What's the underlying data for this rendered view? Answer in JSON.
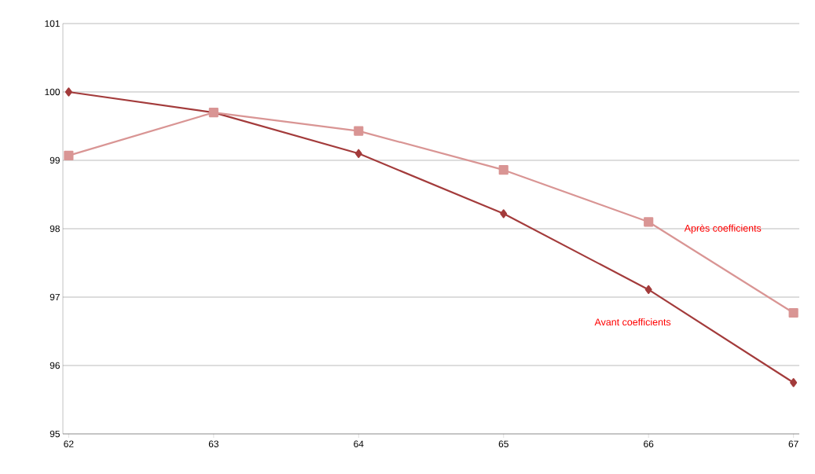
{
  "chart_data": {
    "type": "line",
    "x": [
      62,
      63,
      64,
      65,
      66,
      67
    ],
    "series": [
      {
        "name": "Avant coefficients",
        "color": "#a33b3b",
        "marker": "diamond",
        "values": [
          100.0,
          99.7,
          99.1,
          98.22,
          97.11,
          95.75
        ]
      },
      {
        "name": "Après coefficients",
        "color": "#d99594",
        "marker": "square",
        "values": [
          99.07,
          99.7,
          99.43,
          98.86,
          98.1,
          96.77
        ]
      }
    ],
    "xlim": [
      61.96,
      67.04
    ],
    "xticks": [
      62,
      63,
      64,
      65,
      66,
      67
    ],
    "ylim": [
      95,
      101
    ],
    "yticks": [
      95,
      96,
      97,
      98,
      99,
      100,
      101
    ],
    "grid": "y",
    "line_style": "solid"
  }
}
